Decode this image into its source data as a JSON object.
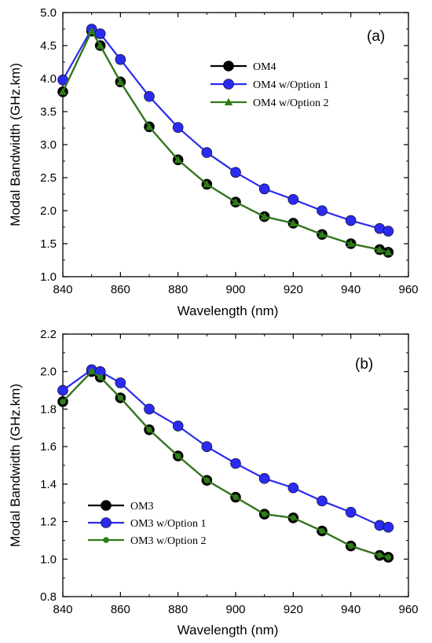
{
  "chart_data": [
    {
      "type": "line",
      "panel_label": "(a)",
      "xlabel": "Wavelength (nm)",
      "ylabel": "Modal Bandwidth (GHz.km)",
      "xlim": [
        840,
        960
      ],
      "ylim": [
        1.0,
        5.0
      ],
      "xticks": [
        840,
        860,
        880,
        900,
        920,
        940,
        960
      ],
      "yticks": [
        1.0,
        1.5,
        2.0,
        2.5,
        3.0,
        3.5,
        4.0,
        4.5,
        5.0
      ],
      "ytick_labels": [
        "1.0",
        "1.5",
        "2.0",
        "2.5",
        "3.0",
        "3.5",
        "4.0",
        "4.5",
        "5.0"
      ],
      "legend_position": "upper-right",
      "x": [
        840,
        850,
        853,
        860,
        870,
        880,
        890,
        900,
        910,
        920,
        930,
        940,
        950,
        953
      ],
      "series": [
        {
          "name": "OM4",
          "color": "#000000",
          "marker": "circle",
          "values": [
            3.8,
            4.72,
            4.5,
            3.95,
            3.27,
            2.77,
            2.4,
            2.13,
            1.91,
            1.81,
            1.64,
            1.5,
            1.41,
            1.37
          ]
        },
        {
          "name": "OM4 w/Option 1",
          "color": "#2b2bf0",
          "marker": "circle",
          "values": [
            3.98,
            4.75,
            4.68,
            4.29,
            3.73,
            3.26,
            2.88,
            2.58,
            2.33,
            2.17,
            2.0,
            1.85,
            1.73,
            1.69
          ]
        },
        {
          "name": "OM4 w/Option 2",
          "color": "#2e7d18",
          "marker": "triangle",
          "values": [
            3.8,
            4.72,
            4.5,
            3.95,
            3.27,
            2.77,
            2.4,
            2.13,
            1.91,
            1.81,
            1.64,
            1.5,
            1.41,
            1.37
          ]
        }
      ]
    },
    {
      "type": "line",
      "panel_label": "(b)",
      "xlabel": "Wavelength (nm)",
      "ylabel": "Modal Bandwidth (GHz.km)",
      "xlim": [
        840,
        960
      ],
      "ylim": [
        0.8,
        2.2
      ],
      "xticks": [
        840,
        860,
        880,
        900,
        920,
        940,
        960
      ],
      "yticks": [
        0.8,
        1.0,
        1.2,
        1.4,
        1.6,
        1.8,
        2.0,
        2.2
      ],
      "ytick_labels": [
        "0.8",
        "1.0",
        "1.2",
        "1.4",
        "1.6",
        "1.8",
        "2.0",
        "2.2"
      ],
      "legend_position": "lower-left",
      "x": [
        840,
        850,
        853,
        860,
        870,
        880,
        890,
        900,
        910,
        920,
        930,
        940,
        950,
        953
      ],
      "series": [
        {
          "name": "OM3",
          "color": "#000000",
          "marker": "circle",
          "values": [
            1.84,
            2.0,
            1.97,
            1.86,
            1.69,
            1.55,
            1.42,
            1.33,
            1.24,
            1.22,
            1.15,
            1.07,
            1.02,
            1.01
          ]
        },
        {
          "name": "OM3 w/Option 1",
          "color": "#2b2bf0",
          "marker": "circle",
          "values": [
            1.9,
            2.01,
            2.0,
            1.94,
            1.8,
            1.71,
            1.6,
            1.51,
            1.43,
            1.38,
            1.31,
            1.25,
            1.18,
            1.17
          ]
        },
        {
          "name": "OM3 w/Option 2",
          "color": "#2e7d18",
          "marker": "small-circle",
          "values": [
            1.84,
            2.0,
            1.97,
            1.86,
            1.69,
            1.55,
            1.42,
            1.33,
            1.24,
            1.22,
            1.15,
            1.07,
            1.02,
            1.01
          ]
        }
      ]
    }
  ]
}
